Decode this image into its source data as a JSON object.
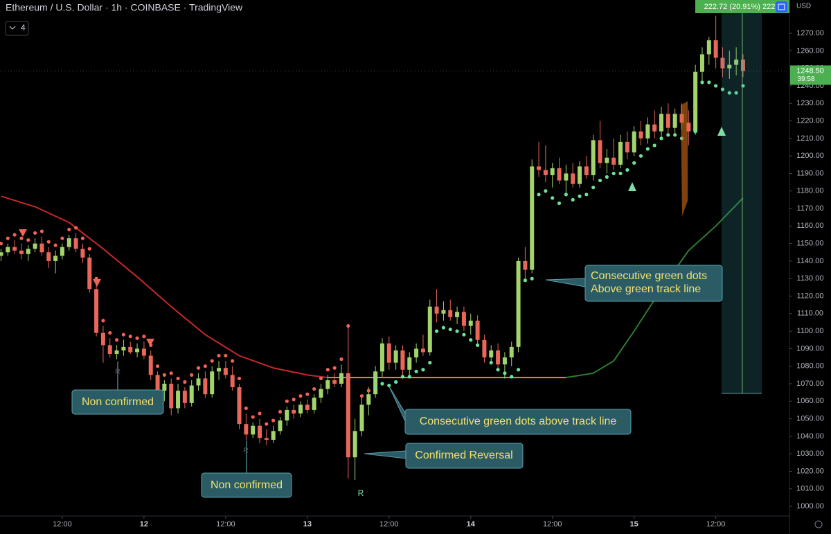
{
  "chart_data": {
    "type": "candlestick",
    "title": "Ethereum / U.S. Dollar · 1h · COINBASE · TradingView",
    "indicator_badge": "4",
    "currency": "USD",
    "measure_label": "222.72 (20.91%) 222",
    "last_price": {
      "label": "1248.50",
      "countdown": "39:58"
    },
    "up_color": "#a3d46c",
    "down_color": "#e8665a",
    "x": [
      3,
      4,
      5,
      6,
      7,
      8,
      9,
      10,
      11,
      12,
      13,
      14,
      15,
      16,
      17,
      18,
      19,
      20,
      21,
      22,
      23,
      24,
      25,
      26,
      27,
      28,
      29,
      30,
      31,
      32,
      33,
      34,
      35,
      36,
      37,
      38,
      39,
      40,
      41,
      42,
      43,
      44,
      45,
      46,
      47,
      48,
      49,
      50,
      51,
      52,
      53,
      54,
      55,
      56,
      57,
      58,
      59,
      60,
      61,
      62,
      63,
      64,
      65,
      66,
      67,
      68,
      69,
      70,
      71,
      72,
      73,
      74,
      75,
      76,
      77,
      78,
      79,
      80,
      81,
      82,
      83,
      84,
      85,
      86,
      87,
      88,
      89,
      90,
      91,
      92,
      93,
      94,
      95,
      96,
      97,
      98,
      99,
      100,
      101,
      102,
      103,
      104,
      105,
      106,
      107,
      108,
      109,
      110,
      111,
      112
    ],
    "open": [
      1143,
      1145,
      1148,
      1146,
      1144,
      1147,
      1150,
      1145,
      1140,
      1143,
      1148,
      1153,
      1147,
      1142,
      1124,
      1099,
      1092,
      1087,
      1089,
      1091,
      1088,
      1090,
      1086,
      1075,
      1066,
      1070,
      1056,
      1066,
      1059,
      1069,
      1073,
      1064,
      1077,
      1079,
      1075,
      1068,
      1047,
      1041,
      1046,
      1039,
      1038,
      1043,
      1049,
      1055,
      1053,
      1058,
      1055,
      1062,
      1067,
      1072,
      1070,
      1076,
      1028,
      1043,
      1058,
      1064,
      1077,
      1093,
      1082,
      1089,
      1078,
      1085,
      1090,
      1088,
      1114,
      1110,
      1112,
      1108,
      1111,
      1103,
      1106,
      1095,
      1085,
      1089,
      1081,
      1085,
      1091,
      1140,
      1135,
      1194,
      1192,
      1189,
      1193,
      1186,
      1190,
      1184,
      1194,
      1189,
      1209,
      1196,
      1199,
      1195,
      1208,
      1202,
      1214,
      1210,
      1218,
      1214,
      1224,
      1216,
      1224,
      1219,
      1214,
      1248,
      1258,
      1266,
      1256,
      1250,
      1252,
      1255
    ],
    "high": [
      1147,
      1150,
      1152,
      1150,
      1149,
      1153,
      1154,
      1148,
      1146,
      1150,
      1155,
      1156,
      1150,
      1144,
      1127,
      1103,
      1096,
      1092,
      1095,
      1094,
      1093,
      1094,
      1089,
      1077,
      1072,
      1073,
      1070,
      1068,
      1072,
      1076,
      1077,
      1080,
      1083,
      1083,
      1080,
      1070,
      1053,
      1048,
      1050,
      1044,
      1046,
      1051,
      1057,
      1058,
      1060,
      1061,
      1064,
      1070,
      1075,
      1076,
      1081,
      1103,
      1050,
      1062,
      1068,
      1080,
      1096,
      1097,
      1092,
      1092,
      1088,
      1093,
      1098,
      1118,
      1124,
      1117,
      1118,
      1114,
      1114,
      1110,
      1109,
      1098,
      1092,
      1093,
      1088,
      1094,
      1142,
      1148,
      1198,
      1208,
      1206,
      1196,
      1199,
      1195,
      1196,
      1197,
      1200,
      1212,
      1220,
      1204,
      1210,
      1212,
      1214,
      1217,
      1220,
      1222,
      1226,
      1228,
      1230,
      1227,
      1230,
      1226,
      1252,
      1262,
      1268,
      1280,
      1262,
      1260,
      1262,
      1258
    ],
    "low": [
      1140,
      1143,
      1144,
      1141,
      1140,
      1145,
      1143,
      1136,
      1133,
      1141,
      1146,
      1145,
      1139,
      1122,
      1097,
      1082,
      1085,
      1084,
      1086,
      1087,
      1085,
      1084,
      1072,
      1062,
      1060,
      1052,
      1053,
      1056,
      1057,
      1066,
      1062,
      1062,
      1072,
      1073,
      1066,
      1044,
      1038,
      1039,
      1036,
      1035,
      1036,
      1041,
      1046,
      1050,
      1051,
      1053,
      1053,
      1059,
      1064,
      1068,
      1068,
      1016,
      1015,
      1040,
      1052,
      1062,
      1074,
      1078,
      1078,
      1074,
      1075,
      1082,
      1086,
      1086,
      1105,
      1106,
      1106,
      1104,
      1100,
      1098,
      1092,
      1082,
      1081,
      1078,
      1073,
      1080,
      1088,
      1128,
      1133,
      1188,
      1185,
      1182,
      1184,
      1178,
      1182,
      1182,
      1187,
      1186,
      1193,
      1190,
      1192,
      1193,
      1198,
      1200,
      1206,
      1207,
      1210,
      1209,
      1212,
      1212,
      1215,
      1206,
      1212,
      1243,
      1252,
      1250,
      1245,
      1244,
      1246,
      1245
    ],
    "close": [
      1145,
      1148,
      1146,
      1144,
      1147,
      1150,
      1145,
      1140,
      1143,
      1148,
      1153,
      1147,
      1142,
      1124,
      1099,
      1092,
      1087,
      1089,
      1091,
      1088,
      1090,
      1086,
      1075,
      1066,
      1070,
      1056,
      1066,
      1059,
      1069,
      1073,
      1064,
      1077,
      1079,
      1075,
      1068,
      1047,
      1041,
      1046,
      1039,
      1038,
      1043,
      1049,
      1055,
      1053,
      1058,
      1055,
      1062,
      1067,
      1072,
      1070,
      1076,
      1028,
      1043,
      1058,
      1064,
      1077,
      1093,
      1082,
      1089,
      1078,
      1085,
      1090,
      1088,
      1114,
      1110,
      1112,
      1108,
      1111,
      1103,
      1106,
      1095,
      1085,
      1089,
      1081,
      1085,
      1091,
      1140,
      1135,
      1194,
      1192,
      1189,
      1193,
      1186,
      1190,
      1184,
      1194,
      1189,
      1209,
      1196,
      1199,
      1195,
      1208,
      1202,
      1214,
      1210,
      1218,
      1214,
      1224,
      1216,
      1224,
      1219,
      1214,
      1248,
      1258,
      1266,
      1256,
      1250,
      1252,
      1255,
      1248.5
    ],
    "dots": [
      1150,
      1153,
      1155,
      1153,
      1152,
      1156,
      1157,
      1151,
      1149,
      1153,
      1158,
      1159,
      1153,
      1147,
      1130,
      1106,
      1099,
      1095,
      1098,
      1097,
      1096,
      1097,
      1092,
      1080,
      1075,
      1076,
      1073,
      1071,
      1075,
      1079,
      1080,
      1083,
      1086,
      1086,
      1083,
      1073,
      1056,
      1051,
      1053,
      1047,
      1049,
      1054,
      1060,
      1061,
      1063,
      1064,
      1067,
      1073,
      1078,
      1079,
      1084,
      1103,
      null,
      1063,
      1066,
      1068,
      1070,
      1069,
      1071,
      1074,
      1074,
      1077,
      1078,
      1082,
      1100,
      1102,
      1101,
      1100,
      1098,
      1095,
      1092,
      1088,
      1082,
      1078,
      1076,
      1074,
      1078,
      1129,
      1130,
      1178,
      1180,
      1176,
      1173,
      1178,
      1175,
      1177,
      1178,
      1182,
      1186,
      1188,
      1190,
      1190,
      1192,
      1196,
      1200,
      1204,
      1206,
      1210,
      1212,
      1212,
      1210,
      1215,
      1214,
      1242,
      1242,
      1240,
      1238,
      1236,
      1236,
      1240
    ],
    "lines": [
      {
        "color": "#c62828",
        "x": [
          3,
          8,
          13,
          18,
          23,
          28,
          33,
          38,
          43,
          48,
          51
        ],
        "values": [
          1177,
          1171,
          1162,
          1147,
          1131,
          1114,
          1098,
          1086,
          1079,
          1075,
          1073.5
        ]
      },
      {
        "color": "#ef8a2c",
        "x": [
          51,
          86
        ],
        "values": [
          1073.5,
          1073.5
        ]
      },
      {
        "color": "#2e7d32",
        "x": [
          86,
          90,
          93,
          96,
          100,
          104,
          108,
          112
        ],
        "values": [
          1073.5,
          1076,
          1083,
          1100,
          1124,
          1146,
          1160,
          1176
        ]
      }
    ],
    "annotations": [
      {
        "lines": [
          "Non confirmed"
        ]
      },
      {
        "lines": [
          "Non confirmed"
        ]
      },
      {
        "lines": [
          "Consecutive green dots above track line"
        ]
      },
      {
        "lines": [
          "Confirmed Reversal"
        ]
      },
      {
        "lines": [
          "Consecutive green dots",
          "Above green track line"
        ]
      }
    ],
    "signal_labels": [
      "R",
      "R",
      "R"
    ],
    "xlim": [
      2.85,
      118.82
    ],
    "ylim": [
      994.5,
      1289
    ],
    "xticks": [
      {
        "value": 12,
        "label": "12:00"
      },
      {
        "value": 24,
        "label": "12"
      },
      {
        "value": 36,
        "label": "12:00"
      },
      {
        "value": 48,
        "label": "13"
      },
      {
        "value": 60,
        "label": "12:00"
      },
      {
        "value": 72,
        "label": "14"
      },
      {
        "value": 84,
        "label": "12:00"
      },
      {
        "value": 96,
        "label": "15"
      },
      {
        "value": 108,
        "label": "12:00"
      }
    ],
    "yticks": [
      {
        "value": 1000,
        "label": "1000.00"
      },
      {
        "value": 1010,
        "label": "1010.00"
      },
      {
        "value": 1020,
        "label": "1020.00"
      },
      {
        "value": 1030,
        "label": "1030.00"
      },
      {
        "value": 1040,
        "label": "1040.00"
      },
      {
        "value": 1050,
        "label": "1050.00"
      },
      {
        "value": 1060,
        "label": "1060.00"
      },
      {
        "value": 1070,
        "label": "1070.00"
      },
      {
        "value": 1080,
        "label": "1080.00"
      },
      {
        "value": 1090,
        "label": "1090.00"
      },
      {
        "value": 1100,
        "label": "1100.00"
      },
      {
        "value": 1110,
        "label": "1110.00"
      },
      {
        "value": 1120,
        "label": "1120.00"
      },
      {
        "value": 1130,
        "label": "1130.00"
      },
      {
        "value": 1140,
        "label": "1140.00"
      },
      {
        "value": 1150,
        "label": "1150.00"
      },
      {
        "value": 1160,
        "label": "1160.00"
      },
      {
        "value": 1170,
        "label": "1170.00"
      },
      {
        "value": 1180,
        "label": "1180.00"
      },
      {
        "value": 1190,
        "label": "1190.00"
      },
      {
        "value": 1200,
        "label": "1200.00"
      },
      {
        "value": 1210,
        "label": "1210.00"
      },
      {
        "value": 1220,
        "label": "1220.00"
      },
      {
        "value": 1230,
        "label": "1230.00"
      },
      {
        "value": 1240,
        "label": "1240.00"
      },
      {
        "value": 1250,
        "label": "1250.00"
      },
      {
        "value": 1260,
        "label": "1260.00"
      },
      {
        "value": 1270,
        "label": "1270.00"
      }
    ]
  }
}
